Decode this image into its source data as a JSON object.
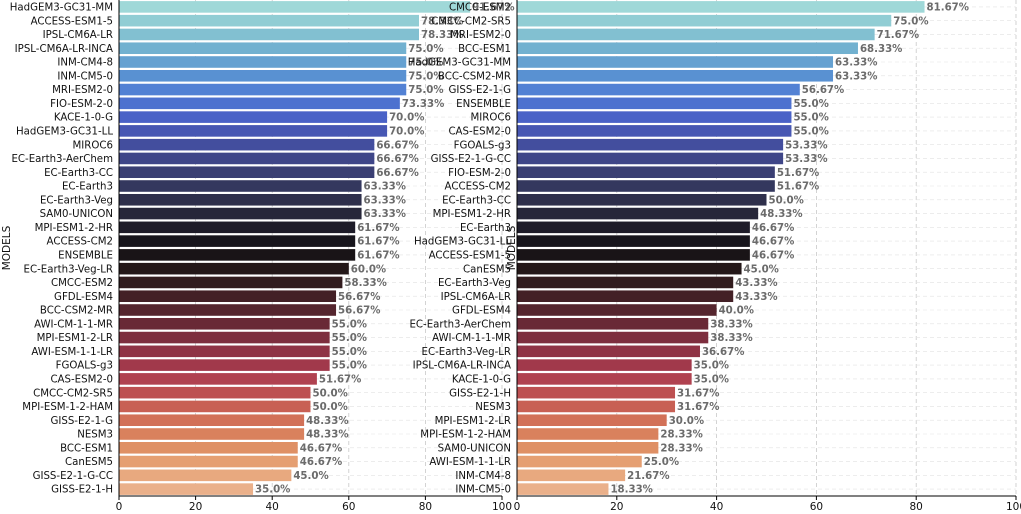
{
  "chart_data": [
    {
      "type": "bar",
      "orientation": "horizontal",
      "ylabel": "MODELS",
      "xlabel": "",
      "xlim": [
        0,
        100
      ],
      "xticks": [
        0,
        20,
        40,
        60,
        80,
        100
      ],
      "grid": true,
      "categories": [
        "HadGEM3-GC31-MM",
        "ACCESS-ESM1-5",
        "IPSL-CM6A-LR",
        "IPSL-CM6A-LR-INCA",
        "INM-CM4-8",
        "INM-CM5-0",
        "MRI-ESM2-0",
        "FIO-ESM-2-0",
        "KACE-1-0-G",
        "HadGEM3-GC31-LL",
        "MIROC6",
        "EC-Earth3-AerChem",
        "EC-Earth3-CC",
        "EC-Earth3",
        "EC-Earth3-Veg",
        "SAM0-UNICON",
        "MPI-ESM1-2-HR",
        "ACCESS-CM2",
        "ENSEMBLE",
        "EC-Earth3-Veg-LR",
        "CMCC-ESM2",
        "GFDL-ESM4",
        "BCC-CSM2-MR",
        "AWI-CM-1-1-MR",
        "MPI-ESM1-2-LR",
        "AWI-ESM-1-1-LR",
        "FGOALS-g3",
        "CAS-ESM2-0",
        "CMCC-CM2-SR5",
        "MPI-ESM-1-2-HAM",
        "GISS-E2-1-G",
        "NESM3",
        "BCC-ESM1",
        "CanESM5",
        "GISS-E2-1-G-CC",
        "GISS-E2-1-H"
      ],
      "values": [
        91.67,
        78.33,
        78.33,
        75.0,
        75.0,
        75.0,
        75.0,
        73.33,
        70.0,
        70.0,
        66.67,
        66.67,
        66.67,
        63.33,
        63.33,
        63.33,
        61.67,
        61.67,
        61.67,
        60.0,
        58.33,
        56.67,
        56.67,
        55.0,
        55.0,
        55.0,
        55.0,
        51.67,
        50.0,
        50.0,
        48.33,
        48.33,
        46.67,
        46.67,
        45.0,
        35.0
      ],
      "labels": [
        "91.67%",
        "78.33%",
        "78.33%",
        "75.0%",
        "75.0%",
        "75.0%",
        "75.0%",
        "73.33%",
        "70.0%",
        "70.0%",
        "66.67%",
        "66.67%",
        "66.67%",
        "63.33%",
        "63.33%",
        "63.33%",
        "61.67%",
        "61.67%",
        "61.67%",
        "60.0%",
        "58.33%",
        "56.67%",
        "56.67%",
        "55.0%",
        "55.0%",
        "55.0%",
        "55.0%",
        "51.67%",
        "50.0%",
        "50.0%",
        "48.33%",
        "48.33%",
        "46.67%",
        "46.67%",
        "45.0%",
        "35.0%"
      ]
    },
    {
      "type": "bar",
      "orientation": "horizontal",
      "ylabel": "MODELS",
      "xlabel": "",
      "xlim": [
        0,
        100
      ],
      "xticks": [
        0,
        20,
        40,
        60,
        80,
        100
      ],
      "grid": true,
      "categories": [
        "CMCC-ESM2",
        "CMCC-CM2-SR5",
        "MRI-ESM2-0",
        "BCC-ESM1",
        "HadGEM3-GC31-MM",
        "BCC-CSM2-MR",
        "GISS-E2-1-G",
        "ENSEMBLE",
        "MIROC6",
        "CAS-ESM2-0",
        "FGOALS-g3",
        "GISS-E2-1-G-CC",
        "FIO-ESM-2-0",
        "ACCESS-CM2",
        "EC-Earth3-CC",
        "MPI-ESM1-2-HR",
        "EC-Earth3",
        "HadGEM3-GC31-LL",
        "ACCESS-ESM1-5",
        "CanESM5",
        "EC-Earth3-Veg",
        "IPSL-CM6A-LR",
        "GFDL-ESM4",
        "EC-Earth3-AerChem",
        "AWI-CM-1-1-MR",
        "EC-Earth3-Veg-LR",
        "IPSL-CM6A-LR-INCA",
        "KACE-1-0-G",
        "GISS-E2-1-H",
        "NESM3",
        "MPI-ESM1-2-LR",
        "MPI-ESM-1-2-HAM",
        "SAM0-UNICON",
        "AWI-ESM-1-1-LR",
        "INM-CM4-8",
        "INM-CM5-0"
      ],
      "values": [
        81.67,
        75.0,
        71.67,
        68.33,
        63.33,
        63.33,
        56.67,
        55.0,
        55.0,
        55.0,
        53.33,
        53.33,
        51.67,
        51.67,
        50.0,
        48.33,
        46.67,
        46.67,
        46.67,
        45.0,
        43.33,
        43.33,
        40.0,
        38.33,
        38.33,
        36.67,
        35.0,
        35.0,
        31.67,
        31.67,
        30.0,
        28.33,
        28.33,
        25.0,
        21.67,
        18.33
      ],
      "labels": [
        "81.67%",
        "75.0%",
        "71.67%",
        "68.33%",
        "63.33%",
        "63.33%",
        "56.67%",
        "55.0%",
        "55.0%",
        "55.0%",
        "53.33%",
        "53.33%",
        "51.67%",
        "51.67%",
        "50.0%",
        "48.33%",
        "46.67%",
        "46.67%",
        "46.67%",
        "45.0%",
        "43.33%",
        "43.33%",
        "40.0%",
        "38.33%",
        "38.33%",
        "36.67%",
        "35.0%",
        "35.0%",
        "31.67%",
        "31.67%",
        "30.0%",
        "28.33%",
        "28.33%",
        "25.0%",
        "21.67%",
        "18.33%"
      ]
    }
  ],
  "palette": [
    "#9fd8d8",
    "#88c6d2",
    "#6faed0",
    "#5b95d2",
    "#4f7bd4",
    "#4a62c8",
    "#4552a8",
    "#3e4585",
    "#363a63",
    "#2c2c45",
    "#1f1d2a",
    "#141216",
    "#241718",
    "#3d1f23",
    "#5a2630",
    "#7a2d3d",
    "#983548",
    "#b14250",
    "#c55a52",
    "#d47559",
    "#de8d62",
    "#e7a578",
    "#eab08a"
  ]
}
